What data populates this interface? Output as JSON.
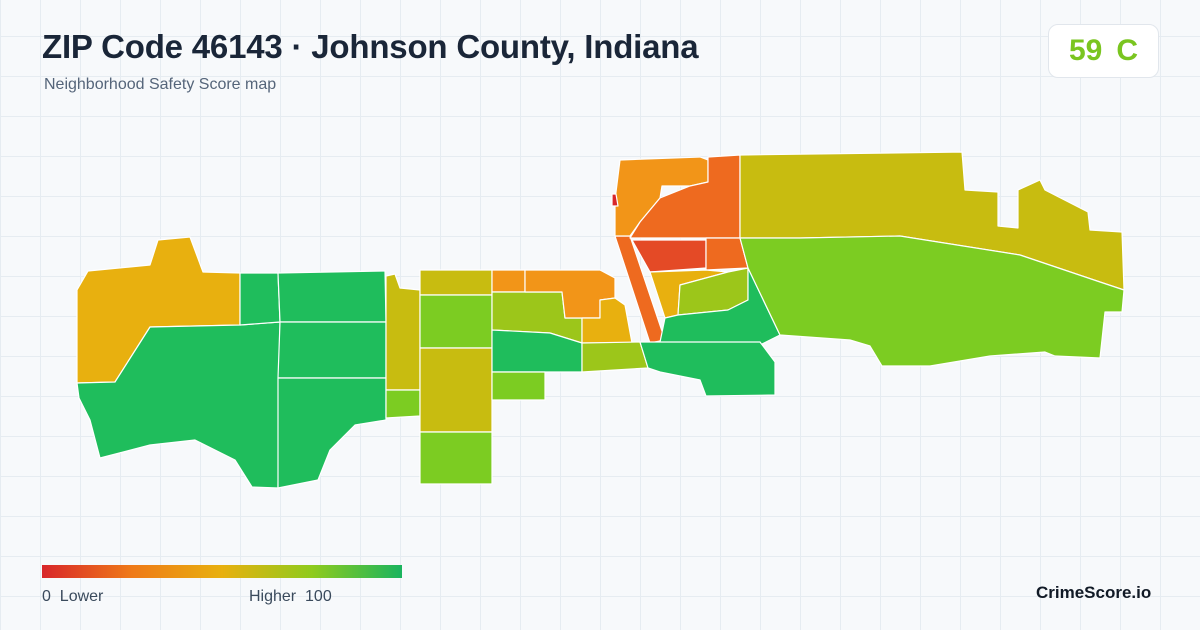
{
  "header": {
    "title": "ZIP Code 46143 · Johnson County, Indiana",
    "subtitle": "Neighborhood Safety Score map"
  },
  "score": {
    "value": "59",
    "grade": "C",
    "color": "#7ac520"
  },
  "legend": {
    "low_value": "0",
    "low_label": "Lower",
    "high_label": "Higher",
    "high_value": "100",
    "colors": [
      "#d8262a",
      "#ef7a18",
      "#e8b00f",
      "#8fcb1d",
      "#1ab45e"
    ]
  },
  "brand": "CrimeScore.io",
  "palette": {
    "red": "#e44a26",
    "dark_orange": "#ee6a1f",
    "orange": "#f29518",
    "amber": "#e8b00f",
    "olive": "#c8bc10",
    "yellow_green": "#9cc61a",
    "lime": "#7ccc22",
    "green": "#1fbd5c"
  }
}
